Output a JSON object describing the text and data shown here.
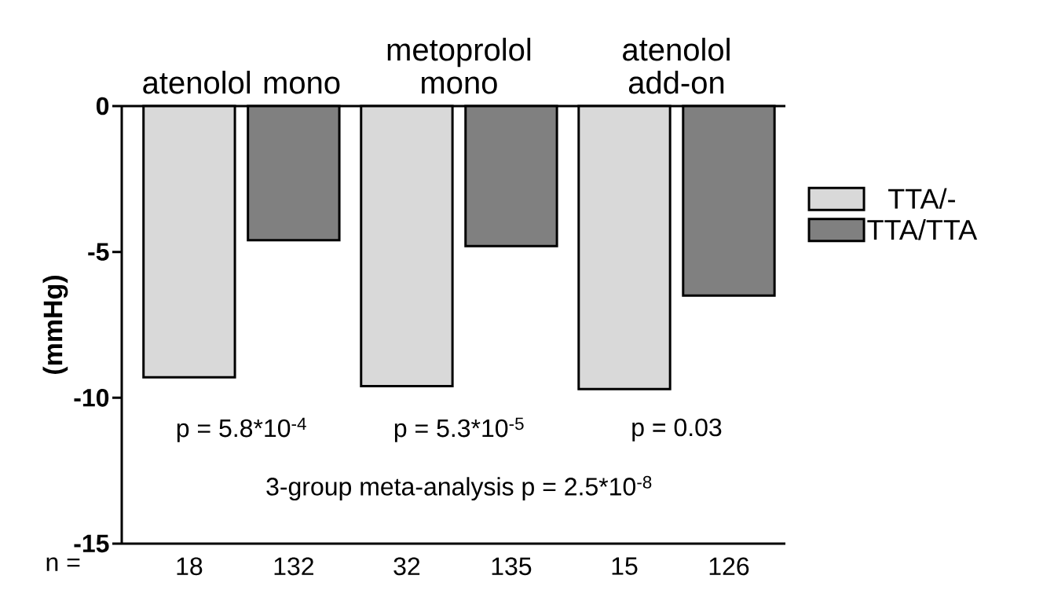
{
  "chart_data": {
    "type": "bar",
    "ylabel": "(mmHg)",
    "categories": [
      "atenolol mono",
      "metoprolol mono",
      "atenolol add-on"
    ],
    "series": [
      {
        "name": "TTA/-",
        "color": "#d9d9d9",
        "values": [
          -9.3,
          -9.6,
          -9.7
        ]
      },
      {
        "name": "TTA/TTA",
        "color": "#808080",
        "values": [
          -4.6,
          -4.8,
          -6.5
        ]
      }
    ],
    "ylim": [
      -15,
      0
    ],
    "yticks": [
      -15,
      -10,
      -5,
      0
    ],
    "legend": "right",
    "grid": false,
    "annotations": [
      "n =",
      "18",
      "132",
      "32",
      "135",
      "15",
      "126",
      "p = 5.8*10$^{-4}$",
      "p = 5.3*10$^{-5}$",
      "p = 0.03",
      "3-group meta-analysis p = 2.5*10$^{-8}$"
    ]
  }
}
